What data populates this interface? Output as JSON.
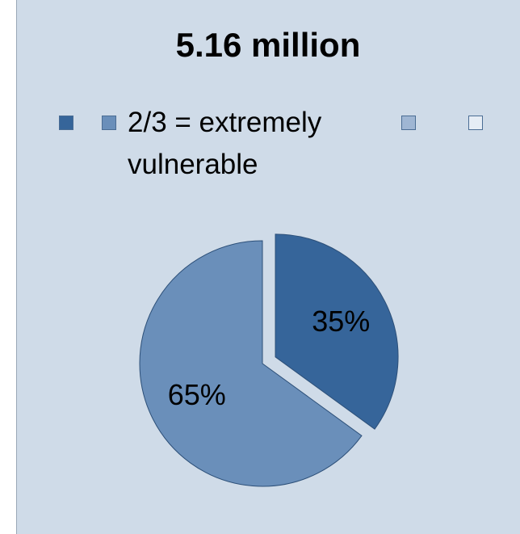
{
  "chart_data": {
    "type": "pie",
    "title": "5.16 million",
    "categories": [
      null,
      "2/3 = extremely vulnerable",
      null,
      null
    ],
    "values": [
      35,
      65,
      null,
      null
    ],
    "value_labels": [
      "35%",
      "65%",
      null,
      null
    ],
    "colors": [
      "#36659a",
      "#6a8fba",
      "#9fb6d3",
      "#e6edf5"
    ]
  }
}
